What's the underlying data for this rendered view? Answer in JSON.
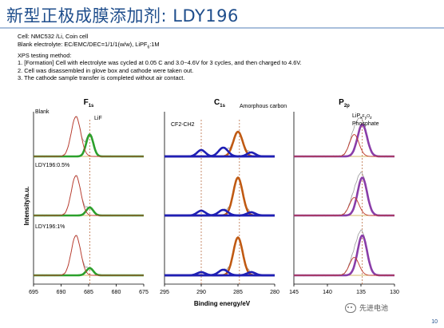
{
  "title": "新型正极成膜添加剂: LDY196",
  "info": [
    "Cell: NMC532 /Li, Coin cell",
    "Blank electrolyte: EC/EMC/DEC=1/1/1(w/w), LiPF6:1M",
    "XPS testing method:",
    "1. [Formation] Cell with electrolyte was cycled at 0.05 C and 3.0~4.6V for 3 cycles, and then charged to 4.6V.",
    "2. Cell was disassembled in glove box and cathode were taken out.",
    "3. The cathode sample transfer is completed without air contact."
  ],
  "page_number": "10",
  "watermark": "先进电池",
  "colors": {
    "title": "#1f4e8c",
    "green": "#2ca02c",
    "orange": "#c05a13",
    "purple": "#8a3da8",
    "blue": "#1f1fb4",
    "raw": "#9a9a9a",
    "envelope_red": "#c0392b"
  },
  "chart_data": [
    {
      "type": "line",
      "panel": "F 1s",
      "panel_title": "F1s",
      "x_reversed": true,
      "xlim": [
        675,
        695
      ],
      "xticks": [
        695,
        690,
        685,
        680,
        675
      ],
      "reference_line": {
        "x": 684.8,
        "label": "LiF"
      },
      "rows": [
        "Blank",
        "LDY196:0.5%",
        "LDY196:1%"
      ],
      "series": [
        {
          "row": "Blank",
          "components": [
            {
              "role": "peak",
              "color": "green",
              "center": 684.8,
              "width": 0.9,
              "rel_height": 0.55
            },
            {
              "role": "peak",
              "color": "red",
              "center": 687.3,
              "width": 1.2,
              "rel_height": 1.0
            }
          ]
        },
        {
          "row": "LDY196:0.5%",
          "components": [
            {
              "role": "peak",
              "color": "green",
              "center": 684.8,
              "width": 0.9,
              "rel_height": 0.2
            },
            {
              "role": "peak",
              "color": "red",
              "center": 687.3,
              "width": 1.2,
              "rel_height": 1.0
            }
          ]
        },
        {
          "row": "LDY196:1%",
          "components": [
            {
              "role": "peak",
              "color": "green",
              "center": 684.8,
              "width": 0.9,
              "rel_height": 0.18
            },
            {
              "role": "peak",
              "color": "red",
              "center": 687.3,
              "width": 1.2,
              "rel_height": 1.0
            }
          ]
        }
      ]
    },
    {
      "type": "line",
      "panel": "C 1s",
      "panel_title": "C1s",
      "x_reversed": true,
      "xlim": [
        280,
        295
      ],
      "xticks": [
        295,
        290,
        285,
        280
      ],
      "reference_lines": [
        {
          "x": 290.0,
          "label": "CF2-CH2"
        },
        {
          "x": 284.8,
          "label": "Amorphous carbon"
        }
      ],
      "rows": [
        "Blank",
        "LDY196:0.5%",
        "LDY196:1%"
      ],
      "series": [
        {
          "row": "Blank",
          "components": [
            {
              "role": "peak",
              "color": "orange",
              "center": 285.0,
              "width": 0.9,
              "rel_height": 0.62
            },
            {
              "role": "peak",
              "color": "blue",
              "center": 290.0,
              "width": 0.8,
              "rel_height": 0.16
            },
            {
              "role": "peak",
              "color": "blue",
              "center": 287.0,
              "width": 0.9,
              "rel_height": 0.22
            },
            {
              "role": "peak",
              "color": "blue",
              "center": 283.2,
              "width": 0.8,
              "rel_height": 0.1
            }
          ]
        },
        {
          "row": "LDY196:0.5%",
          "components": [
            {
              "role": "peak",
              "color": "orange",
              "center": 285.0,
              "width": 0.9,
              "rel_height": 0.95
            },
            {
              "role": "peak",
              "color": "blue",
              "center": 290.0,
              "width": 0.8,
              "rel_height": 0.12
            },
            {
              "role": "peak",
              "color": "blue",
              "center": 287.0,
              "width": 0.9,
              "rel_height": 0.14
            },
            {
              "role": "peak",
              "color": "blue",
              "center": 283.2,
              "width": 0.8,
              "rel_height": 0.08
            }
          ]
        },
        {
          "row": "LDY196:1%",
          "components": [
            {
              "role": "peak",
              "color": "orange",
              "center": 285.0,
              "width": 0.9,
              "rel_height": 0.95
            },
            {
              "role": "peak",
              "color": "blue",
              "center": 290.0,
              "width": 0.8,
              "rel_height": 0.08
            },
            {
              "role": "peak",
              "color": "blue",
              "center": 287.0,
              "width": 0.9,
              "rel_height": 0.14
            },
            {
              "role": "peak",
              "color": "blue",
              "center": 283.2,
              "width": 0.8,
              "rel_height": 0.08
            }
          ]
        }
      ]
    },
    {
      "type": "line",
      "panel": "P 2p",
      "panel_title": "P2p",
      "x_reversed": true,
      "xlim": [
        130,
        145
      ],
      "xticks": [
        145,
        140,
        135,
        130
      ],
      "reference_line": {
        "x": 134.8,
        "label": "LiPxFyOz, Phosphate"
      },
      "rows": [
        "Blank",
        "LDY196:0.5%",
        "LDY196:1%"
      ],
      "series": [
        {
          "row": "Blank",
          "components": [
            {
              "role": "peak",
              "color": "purple",
              "center": 134.8,
              "width": 1.0,
              "rel_height": 0.8
            },
            {
              "role": "peak",
              "color": "red",
              "center": 136.0,
              "width": 1.0,
              "rel_height": 0.55
            }
          ]
        },
        {
          "row": "LDY196:0.5%",
          "components": [
            {
              "role": "peak",
              "color": "purple",
              "center": 134.8,
              "width": 1.0,
              "rel_height": 0.95
            },
            {
              "role": "peak",
              "color": "red",
              "center": 136.0,
              "width": 1.0,
              "rel_height": 0.45
            }
          ]
        },
        {
          "row": "LDY196:1%",
          "components": [
            {
              "role": "peak",
              "color": "purple",
              "center": 134.8,
              "width": 1.0,
              "rel_height": 1.0
            },
            {
              "role": "peak",
              "color": "red",
              "center": 136.0,
              "width": 1.0,
              "rel_height": 0.45
            }
          ]
        }
      ]
    }
  ],
  "axes": {
    "xlabel": "Binding energy/eV",
    "ylabel": "Intensity/a.u."
  }
}
